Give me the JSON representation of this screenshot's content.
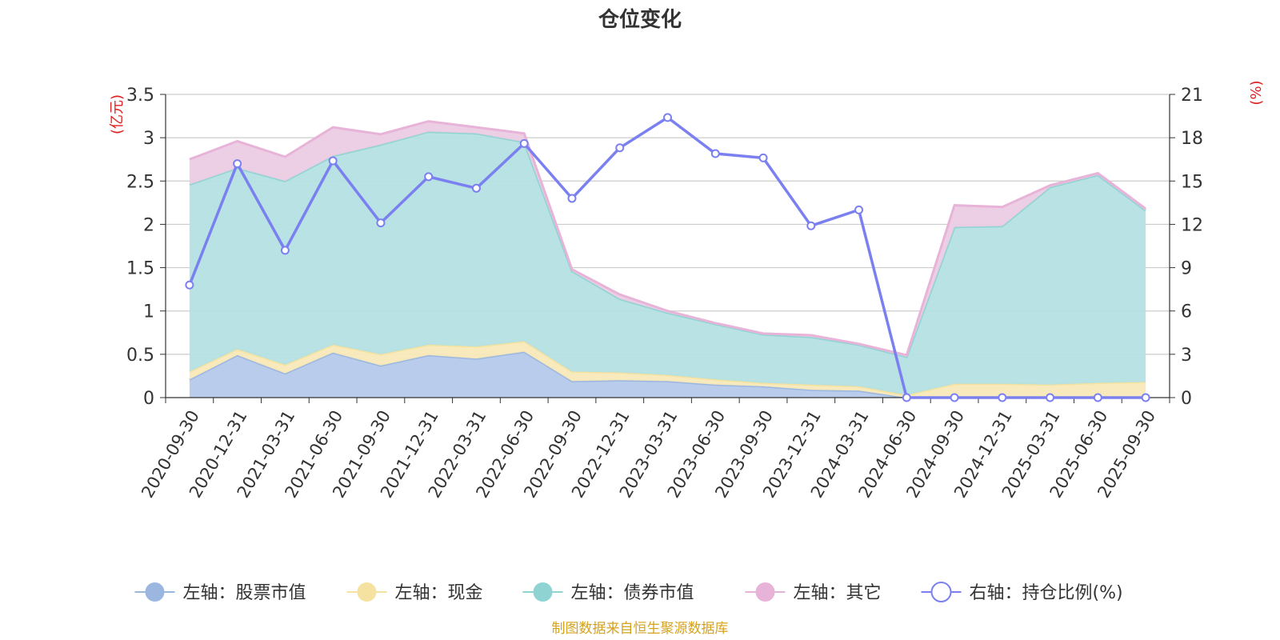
{
  "chart_data": {
    "type": "area",
    "title": "仓位变化",
    "left_axis_unit": "(亿元)",
    "right_axis_unit": "(%)",
    "ylim_left": [
      0,
      3.5
    ],
    "yticks_left": [
      "0",
      "0.5",
      "1",
      "1.5",
      "2",
      "2.5",
      "3",
      "3.5"
    ],
    "ylim_right": [
      0,
      21
    ],
    "yticks_right": [
      "0",
      "3",
      "6",
      "9",
      "12",
      "15",
      "18",
      "21"
    ],
    "grid": true,
    "stacked": true,
    "legend_position": "bottom",
    "categories": [
      "2020-09-30",
      "2020-12-31",
      "2021-03-31",
      "2021-06-30",
      "2021-09-30",
      "2021-12-31",
      "2022-03-31",
      "2022-06-30",
      "2022-09-30",
      "2022-12-31",
      "2023-03-31",
      "2023-06-30",
      "2023-09-30",
      "2023-12-31",
      "2024-03-31",
      "2024-06-30",
      "2024-09-30",
      "2024-12-31",
      "2025-03-31",
      "2025-06-30",
      "2025-09-30"
    ],
    "series": [
      {
        "name": "左轴：股票市值",
        "axis": "left",
        "kind": "area",
        "color": "#9bb7e0",
        "fill": "#b6c9ea",
        "values": [
          0.21,
          0.49,
          0.28,
          0.52,
          0.37,
          0.49,
          0.45,
          0.53,
          0.19,
          0.2,
          0.19,
          0.15,
          0.13,
          0.09,
          0.08,
          0.0,
          0.0,
          0.0,
          0.0,
          0.0,
          0.0
        ]
      },
      {
        "name": "左轴：现金",
        "axis": "left",
        "kind": "area",
        "color": "#f5e2a0",
        "fill": "#f8e9b8",
        "values": [
          0.09,
          0.07,
          0.1,
          0.09,
          0.13,
          0.12,
          0.14,
          0.12,
          0.11,
          0.09,
          0.07,
          0.06,
          0.04,
          0.06,
          0.05,
          0.03,
          0.16,
          0.16,
          0.15,
          0.17,
          0.18
        ]
      },
      {
        "name": "左轴：债券市值",
        "axis": "left",
        "kind": "area",
        "color": "#8fd3d3",
        "fill": "#b4e0e1",
        "values": [
          2.16,
          2.09,
          2.12,
          2.18,
          2.42,
          2.46,
          2.46,
          2.3,
          1.16,
          0.85,
          0.72,
          0.64,
          0.56,
          0.55,
          0.48,
          0.44,
          1.81,
          1.82,
          2.28,
          2.4,
          1.98
        ]
      },
      {
        "name": "左轴：其它",
        "axis": "left",
        "kind": "area",
        "color": "#e8b3d8",
        "fill": "#eccce4",
        "values": [
          0.29,
          0.31,
          0.28,
          0.33,
          0.12,
          0.12,
          0.07,
          0.1,
          0.02,
          0.05,
          0.02,
          0.01,
          0.01,
          0.02,
          0.01,
          0.02,
          0.25,
          0.22,
          0.02,
          0.02,
          0.02
        ]
      },
      {
        "name": "右轴：持仓比例(%)",
        "axis": "right",
        "kind": "line",
        "color": "#7b80f0",
        "values": [
          7.8,
          16.2,
          10.2,
          16.4,
          12.1,
          15.3,
          14.5,
          17.6,
          13.8,
          17.3,
          19.4,
          16.9,
          16.6,
          11.9,
          13.0,
          0,
          0,
          0,
          0,
          0,
          0
        ]
      }
    ]
  },
  "source": "制图数据来自恒生聚源数据库"
}
